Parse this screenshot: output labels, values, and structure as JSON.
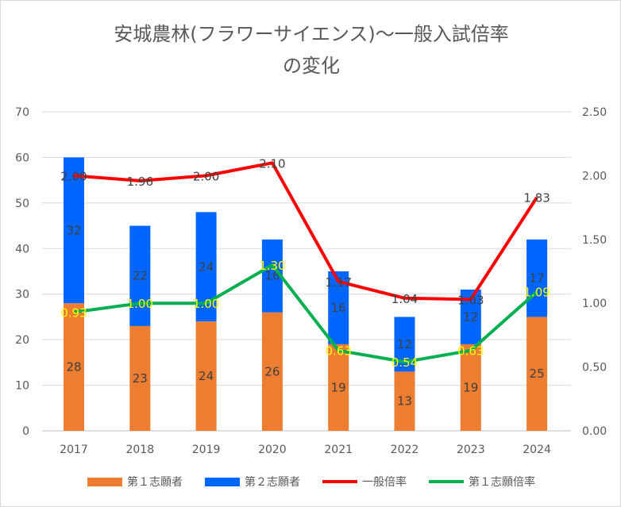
{
  "chart_data": {
    "type": "bar+line",
    "title_line1": "安城農林(フラワーサイエンス)〜一般入試倍率",
    "title_line2": "の変化",
    "categories": [
      "2017",
      "2018",
      "2019",
      "2020",
      "2021",
      "2022",
      "2023",
      "2024"
    ],
    "left_axis": {
      "min": 0,
      "max": 70,
      "ticks": [
        "0",
        "10",
        "20",
        "30",
        "40",
        "50",
        "60",
        "70"
      ]
    },
    "right_axis": {
      "min": 0,
      "max": 2.5,
      "ticks": [
        "0.00",
        "0.50",
        "1.00",
        "1.50",
        "2.00",
        "2.50"
      ]
    },
    "series": [
      {
        "name": "第１志願者",
        "type": "stacked-bar",
        "axis": "left",
        "color": "#ed7d31",
        "values": [
          28,
          23,
          24,
          26,
          19,
          13,
          19,
          25
        ]
      },
      {
        "name": "第２志願者",
        "type": "stacked-bar",
        "axis": "left",
        "color": "#0066ff",
        "values": [
          32,
          22,
          24,
          16,
          16,
          12,
          12,
          17
        ]
      },
      {
        "name": "一般倍率",
        "type": "line",
        "axis": "right",
        "color": "#ff0000",
        "values": [
          2.0,
          1.96,
          2.0,
          2.1,
          1.17,
          1.04,
          1.03,
          1.83
        ]
      },
      {
        "name": "第１志願倍率",
        "type": "line",
        "axis": "right",
        "color": "#00b050",
        "values": [
          0.93,
          1.0,
          1.0,
          1.3,
          0.63,
          0.54,
          0.63,
          1.09
        ]
      }
    ],
    "grid": true,
    "legend": "bottom"
  }
}
